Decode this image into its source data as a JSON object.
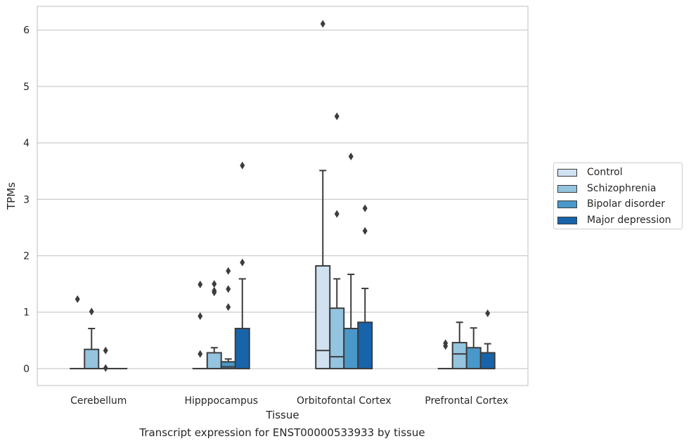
{
  "chart_data": {
    "type": "box",
    "xlabel": "Tissue",
    "ylabel": "TPMs",
    "caption": "Transcript expression for ENST00000533933 by tissue",
    "categories": [
      "Cerebellum",
      "Hipppocampus",
      "Orbitofontal Cortex",
      "Prefrontal Cortex"
    ],
    "ylim": [
      -0.3,
      6.42
    ],
    "yticks": [
      0,
      1,
      2,
      3,
      4,
      5,
      6
    ],
    "grid": true,
    "legend_position": "center-right",
    "series": [
      {
        "name": "Control",
        "color": "#d0e1f2",
        "boxes": [
          {
            "q1": 0,
            "median": 0,
            "q3": 0,
            "whisker_low": 0,
            "whisker_high": 0,
            "outliers": [
              1.23
            ]
          },
          {
            "q1": 0,
            "median": 0,
            "q3": 0,
            "whisker_low": 0,
            "whisker_high": 0,
            "outliers": [
              1.49,
              0.93,
              0.26
            ]
          },
          {
            "q1": 0,
            "median": 0.32,
            "q3": 1.82,
            "whisker_low": 0,
            "whisker_high": 3.51,
            "outliers": [
              6.11
            ]
          },
          {
            "q1": 0,
            "median": 0,
            "q3": 0,
            "whisker_low": 0,
            "whisker_high": 0,
            "outliers": [
              0.45,
              0.4
            ]
          }
        ]
      },
      {
        "name": "Schizophrenia",
        "color": "#94c4df",
        "boxes": [
          {
            "q1": 0,
            "median": 0,
            "q3": 0.34,
            "whisker_low": 0,
            "whisker_high": 0.71,
            "outliers": [
              1.01
            ]
          },
          {
            "q1": 0,
            "median": 0,
            "q3": 0.28,
            "whisker_low": 0,
            "whisker_high": 0.37,
            "outliers": [
              1.5,
              1.38,
              1.35
            ]
          },
          {
            "q1": 0,
            "median": 0.21,
            "q3": 1.07,
            "whisker_low": 0,
            "whisker_high": 1.59,
            "outliers": [
              4.47,
              2.74
            ]
          },
          {
            "q1": 0,
            "median": 0.26,
            "q3": 0.46,
            "whisker_low": 0,
            "whisker_high": 0.82,
            "outliers": []
          }
        ]
      },
      {
        "name": "Bipolar disorder",
        "color": "#4a98c9",
        "boxes": [
          {
            "q1": 0,
            "median": 0,
            "q3": 0,
            "whisker_low": 0,
            "whisker_high": 0,
            "outliers": [
              0.32,
              0.01
            ]
          },
          {
            "q1": 0,
            "median": 0.03,
            "q3": 0.12,
            "whisker_low": 0,
            "whisker_high": 0.17,
            "outliers": [
              1.73,
              1.41,
              1.09
            ]
          },
          {
            "q1": 0,
            "median": 0,
            "q3": 0.71,
            "whisker_low": 0,
            "whisker_high": 1.67,
            "outliers": [
              3.76
            ]
          },
          {
            "q1": 0,
            "median": 0,
            "q3": 0.37,
            "whisker_low": 0,
            "whisker_high": 0.72,
            "outliers": []
          }
        ]
      },
      {
        "name": "Major depression",
        "color": "#1764ab",
        "boxes": [
          {
            "q1": 0,
            "median": 0,
            "q3": 0,
            "whisker_low": 0,
            "whisker_high": 0,
            "outliers": []
          },
          {
            "q1": 0,
            "median": 0,
            "q3": 0.71,
            "whisker_low": 0,
            "whisker_high": 1.59,
            "outliers": [
              3.6,
              1.88
            ]
          },
          {
            "q1": 0,
            "median": 0,
            "q3": 0.82,
            "whisker_low": 0,
            "whisker_high": 1.42,
            "outliers": [
              2.84,
              2.44
            ]
          },
          {
            "q1": 0,
            "median": 0,
            "q3": 0.28,
            "whisker_low": 0,
            "whisker_high": 0.44,
            "outliers": [
              0.98
            ]
          }
        ]
      }
    ]
  }
}
